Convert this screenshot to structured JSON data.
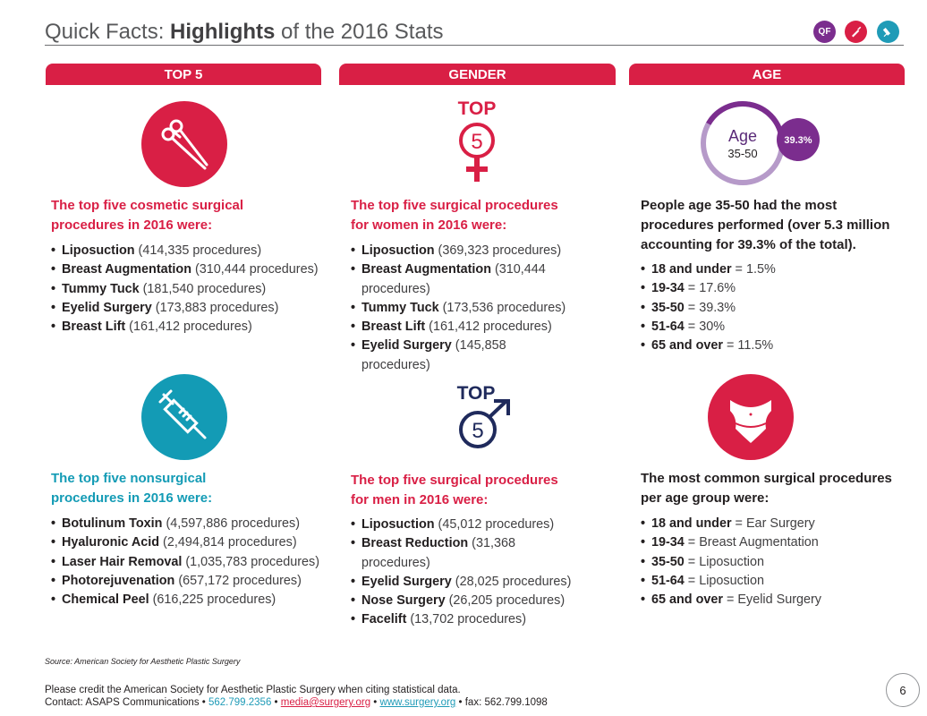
{
  "header": {
    "title_prefix": "Quick Facts: ",
    "title_bold": "Highlights",
    "title_suffix": " of the 2016 Stats",
    "icons": [
      {
        "name": "qf-icon",
        "label": "QF",
        "color": "#7b2d8e"
      },
      {
        "name": "scalpel-icon",
        "color": "#d91f45"
      },
      {
        "name": "syringe-icon",
        "color": "#1f9bb7"
      }
    ]
  },
  "tabs": {
    "top5": "TOP 5",
    "gender": "GENDER",
    "age": "AGE"
  },
  "top5_surgical": {
    "heading_line1": "The top five cosmetic surgical",
    "heading_line2": "procedures in 2016 were:",
    "items": [
      {
        "name": "Liposuction",
        "detail": " (414,335 procedures)"
      },
      {
        "name": "Breast Augmentation",
        "detail": " (310,444 procedures)"
      },
      {
        "name": "Tummy Tuck",
        "detail": " (181,540 procedures)"
      },
      {
        "name": "Eyelid Surgery",
        "detail": " (173,883 procedures)"
      },
      {
        "name": "Breast Lift",
        "detail": " (161,412 procedures)"
      }
    ]
  },
  "top5_nonsurgical": {
    "heading_line1": "The top five nonsurgical",
    "heading_line2": "procedures in 2016 were:",
    "items": [
      {
        "name": "Botulinum Toxin",
        "detail": " (4,597,886 procedures)"
      },
      {
        "name": "Hyaluronic Acid",
        "detail": " (2,494,814 procedures)"
      },
      {
        "name": "Laser Hair Removal",
        "detail": " (1,035,783 procedures)"
      },
      {
        "name": "Photorejuvenation",
        "detail": " (657,172 procedures)"
      },
      {
        "name": "Chemical Peel",
        "detail": " (616,225 procedures)"
      }
    ]
  },
  "women": {
    "top_label": "TOP",
    "number": "5",
    "heading_line1": "The top five surgical procedures",
    "heading_line2": "for women in 2016 were:",
    "items": [
      {
        "name": "Liposuction",
        "detail": " (369,323 procedures)"
      },
      {
        "name": "Breast Augmentation",
        "detail": " (310,444 procedures)"
      },
      {
        "name": "Tummy Tuck",
        "detail": " (173,536 procedures)"
      },
      {
        "name": "Breast Lift",
        "detail": " (161,412 procedures)"
      },
      {
        "name": "Eyelid Surgery",
        "detail": " (145,858 procedures)"
      }
    ]
  },
  "men": {
    "top_label": "TOP",
    "number": "5",
    "heading_line1": "The top five surgical procedures",
    "heading_line2": "for men in 2016 were:",
    "items": [
      {
        "name": "Liposuction",
        "detail": " (45,012 procedures)"
      },
      {
        "name": "Breast Reduction",
        "detail": " (31,368 procedures)"
      },
      {
        "name": "Eyelid Surgery",
        "detail": " (28,025 procedures)"
      },
      {
        "name": "Nose Surgery",
        "detail": " (26,205 procedures)"
      },
      {
        "name": "Facelift",
        "detail": " (13,702 procedures)"
      }
    ]
  },
  "age_chart": {
    "label": "Age",
    "range": "35-50",
    "percent_label": "39.3%",
    "percent_value": 39.3
  },
  "age_breakdown": {
    "heading_line1": "People age 35-50 had the most",
    "heading_line2": "procedures performed (over 5.3 million",
    "heading_line3": "accounting for 39.3% of the total).",
    "items": [
      {
        "name": "18 and under",
        "detail": " = 1.5%"
      },
      {
        "name": "19-34",
        "detail": " = 17.6%"
      },
      {
        "name": "35-50",
        "detail": " = 39.3%"
      },
      {
        "name": "51-64",
        "detail": " = 30%"
      },
      {
        "name": "65 and over",
        "detail": " = 11.5%"
      }
    ]
  },
  "age_common": {
    "heading_line1": "The most common surgical procedures",
    "heading_line2": "per age group were:",
    "items": [
      {
        "name": "18 and under",
        "detail": " = Ear Surgery"
      },
      {
        "name": "19-34",
        "detail": " = Breast Augmentation"
      },
      {
        "name": "35-50",
        "detail": " = Liposuction"
      },
      {
        "name": "51-64",
        "detail": " = Liposuction"
      },
      {
        "name": "65 and over",
        "detail": " = Eyelid Surgery"
      }
    ]
  },
  "footer": {
    "source": "Source: American Society for Aesthetic Plastic Surgery",
    "credit_line": "Please credit the American Society for Aesthetic Plastic Surgery when citing statistical data.",
    "contact_prefix": "Contact: ASAPS Communications • ",
    "phone": "562.799.2356",
    "sep1": " • ",
    "email": "media@surgery.org",
    "sep2": " • ",
    "website": "www.surgery.org",
    "fax": " • fax: 562.799.1098",
    "page_number": "6"
  }
}
